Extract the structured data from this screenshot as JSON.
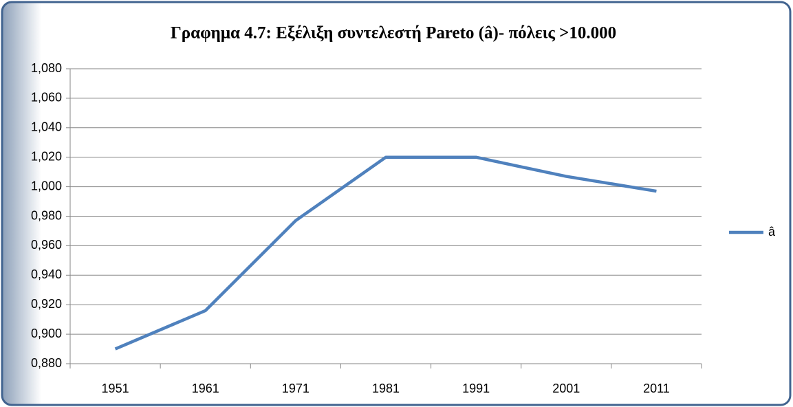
{
  "chart_data": {
    "type": "line",
    "title": "Γραφημα 4.7: Εξέλιξη συντελεστή Pareto (â)- πόλεις >10.000",
    "categories": [
      "1951",
      "1961",
      "1971",
      "1981",
      "1991",
      "2001",
      "2011"
    ],
    "series": [
      {
        "name": "â",
        "color": "#4f81bd",
        "values": [
          0.89,
          0.916,
          0.977,
          1.02,
          1.02,
          1.007,
          0.997
        ]
      }
    ],
    "ylim": [
      0.88,
      1.08
    ],
    "yticks": [
      {
        "value": 0.88,
        "label": "0,880"
      },
      {
        "value": 0.9,
        "label": "0,900"
      },
      {
        "value": 0.92,
        "label": "0,920"
      },
      {
        "value": 0.94,
        "label": "0,940"
      },
      {
        "value": 0.96,
        "label": "0,960"
      },
      {
        "value": 0.98,
        "label": "0,980"
      },
      {
        "value": 1.0,
        "label": "1,000"
      },
      {
        "value": 1.02,
        "label": "1,020"
      },
      {
        "value": 1.04,
        "label": "1,040"
      },
      {
        "value": 1.06,
        "label": "1,060"
      },
      {
        "value": 1.08,
        "label": "1,080"
      }
    ],
    "grid": true,
    "legend": "right"
  }
}
